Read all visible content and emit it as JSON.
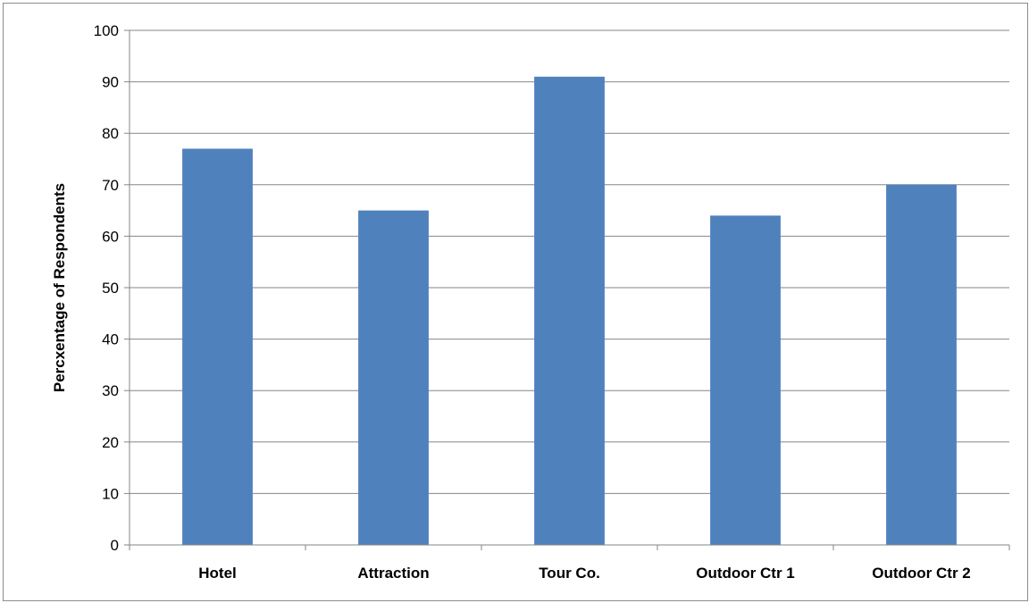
{
  "chart_data": {
    "type": "bar",
    "title": "",
    "xlabel": "",
    "ylabel": "Percxentage of Respondents",
    "categories": [
      "Hotel",
      "Attraction",
      "Tour Co.",
      "Outdoor Ctr 1",
      "Outdoor Ctr 2"
    ],
    "values": [
      77,
      65,
      91,
      64,
      70
    ],
    "ylim": [
      0,
      100
    ],
    "yticks": [
      0,
      10,
      20,
      30,
      40,
      50,
      60,
      70,
      80,
      90,
      100
    ],
    "grid": true,
    "legend": "none",
    "bar_color": "#4f81bd"
  }
}
